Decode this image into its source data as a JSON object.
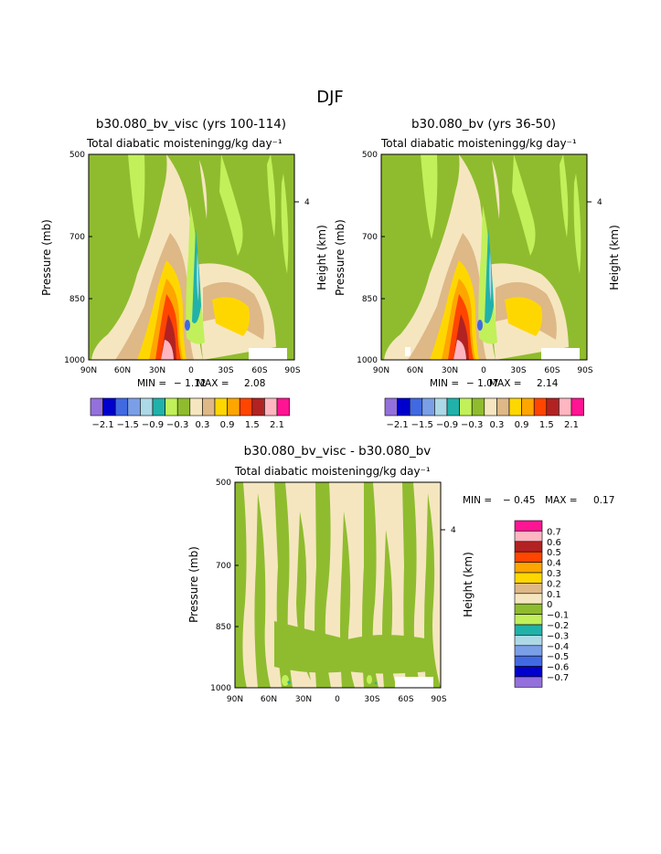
{
  "figure": {
    "title": "DJF"
  },
  "chart_data": [
    {
      "type": "heatmap",
      "title": "b30.080_bv_visc (yrs 100-114)",
      "subtitle": "Total diabatic moistening",
      "units": "g/kg day⁻¹",
      "xlabel": "",
      "ylabel": "Pressure (mb)",
      "y2label": "Height (km)",
      "x_ticks": [
        "90N",
        "60N",
        "30N",
        "0",
        "30S",
        "60S",
        "90S"
      ],
      "y_ticks": [
        "500",
        "700",
        "850",
        "1000"
      ],
      "y2_ticks": [
        "4"
      ],
      "stats": {
        "min_label": "MIN =",
        "min": "-1.12",
        "max_label": "MAX =",
        "max": "2.08"
      },
      "colorbar": {
        "orientation": "horizontal",
        "labels": [
          "-2.1",
          "-1.5",
          "-0.9",
          "-0.3",
          "0.3",
          "0.9",
          "1.5",
          "2.1"
        ],
        "colors": [
          "#9370DB",
          "#0000CD",
          "#4169E1",
          "#7B9FE6",
          "#ADD8E6",
          "#20B2AA",
          "#C1F05A",
          "#8FBC2E",
          "#F5E6C0",
          "#DEB887",
          "#FFD700",
          "#FFA500",
          "#FF4500",
          "#B22222",
          "#FFB6C1",
          "#FF1493"
        ]
      },
      "field": {
        "background": "#8FBC2E",
        "description": "positive moistening (reds/oranges) near 10-30N low levels, narrow negative plume near 5N"
      }
    },
    {
      "type": "heatmap",
      "title": "b30.080_bv (yrs 36-50)",
      "subtitle": "Total diabatic moistening",
      "units": "g/kg day⁻¹",
      "xlabel": "",
      "ylabel": "Pressure (mb)",
      "y2label": "Height (km)",
      "x_ticks": [
        "90N",
        "60N",
        "30N",
        "0",
        "30S",
        "60S",
        "90S"
      ],
      "y_ticks": [
        "500",
        "700",
        "850",
        "1000"
      ],
      "y2_ticks": [
        "4"
      ],
      "stats": {
        "min_label": "MIN =",
        "min": "-1.07",
        "max_label": "MAX =",
        "max": "2.14"
      },
      "colorbar": {
        "orientation": "horizontal",
        "labels": [
          "-2.1",
          "-1.5",
          "-0.9",
          "-0.3",
          "0.3",
          "0.9",
          "1.5",
          "2.1"
        ],
        "colors": [
          "#9370DB",
          "#0000CD",
          "#4169E1",
          "#7B9FE6",
          "#ADD8E6",
          "#20B2AA",
          "#C1F05A",
          "#8FBC2E",
          "#F5E6C0",
          "#DEB887",
          "#FFD700",
          "#FFA500",
          "#FF4500",
          "#B22222",
          "#FFB6C1",
          "#FF1493"
        ]
      }
    },
    {
      "type": "heatmap",
      "title": "b30.080_bv_visc - b30.080_bv",
      "subtitle": "Total diabatic moistening",
      "units": "g/kg day⁻¹",
      "xlabel": "",
      "ylabel": "Pressure (mb)",
      "y2label": "Height (km)",
      "x_ticks": [
        "90N",
        "60N",
        "30N",
        "0",
        "30S",
        "60S",
        "90S"
      ],
      "y_ticks": [
        "500",
        "700",
        "850",
        "1000"
      ],
      "y2_ticks": [
        "4"
      ],
      "stats": {
        "min_label": "MIN =",
        "min": "-0.45",
        "max_label": "MAX =",
        "max": "0.17"
      },
      "colorbar": {
        "orientation": "vertical",
        "labels": [
          "0.7",
          "0.6",
          "0.5",
          "0.4",
          "0.3",
          "0.2",
          "0.1",
          "0",
          "-0.1",
          "-0.2",
          "-0.3",
          "-0.4",
          "-0.5",
          "-0.6",
          "-0.7"
        ],
        "colors": [
          "#FF1493",
          "#FFB6C1",
          "#B22222",
          "#FF4500",
          "#FFA500",
          "#FFD700",
          "#DEB887",
          "#F5E6C0",
          "#8FBC2E",
          "#C1F05A",
          "#20B2AA",
          "#ADD8E6",
          "#7B9FE6",
          "#4169E1",
          "#0000CD",
          "#9370DB"
        ]
      }
    }
  ]
}
